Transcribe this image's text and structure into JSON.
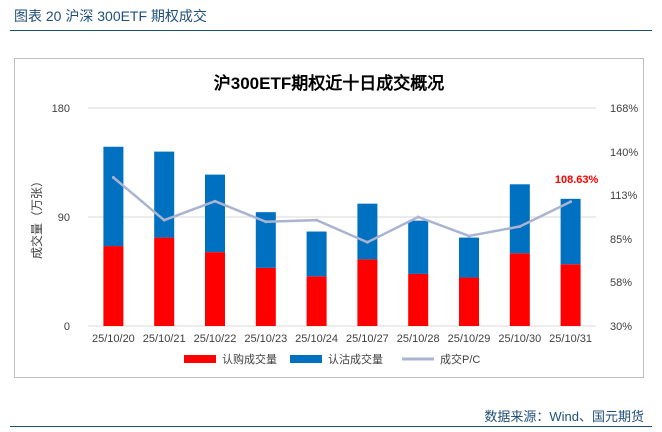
{
  "figure": {
    "title": "图表 20 沪深 300ETF 期权成交",
    "source": "数据来源：Wind、国元期货"
  },
  "colors": {
    "call": "#ff0000",
    "put": "#0070c0",
    "pcr_line": "#aab4d0",
    "label_red": "#ff0000",
    "text": "#404040",
    "grid": "#d9d9d9",
    "title_blue": "#1f4e79"
  },
  "chart_data": {
    "type": "bar",
    "stacked": true,
    "title": "沪300ETF期权近十日成交概况",
    "ylabel": "成交量（万张）",
    "xlabel": "",
    "categories": [
      "25/10/20",
      "25/10/21",
      "25/10/22",
      "25/10/23",
      "25/10/24",
      "25/10/27",
      "25/10/28",
      "25/10/29",
      "25/10/30",
      "25/10/31"
    ],
    "series": [
      {
        "name": "认购成交量",
        "axis": "left",
        "type": "bar",
        "values": [
          66,
          73,
          61,
          48,
          41,
          55,
          43,
          40,
          60,
          51
        ]
      },
      {
        "name": "认沽成交量",
        "axis": "left",
        "type": "bar",
        "values": [
          82,
          71,
          64,
          46,
          37,
          46,
          44,
          33,
          57,
          54
        ]
      },
      {
        "name": "成交P/C",
        "axis": "right",
        "type": "line",
        "values": [
          124,
          97,
          109,
          96,
          97,
          83,
          99,
          87,
          93,
          108.63
        ]
      }
    ],
    "ylim": [
      0,
      180
    ],
    "yticks": [
      "0",
      "90",
      "180"
    ],
    "ylim_right": [
      30,
      168
    ],
    "yticks_right": [
      "30%",
      "58%",
      "85%",
      "113%",
      "140%",
      "168%"
    ],
    "annotation": {
      "text": "108.63%",
      "series": "成交P/C",
      "index": 9
    },
    "legend_position": "bottom",
    "grid": true
  }
}
